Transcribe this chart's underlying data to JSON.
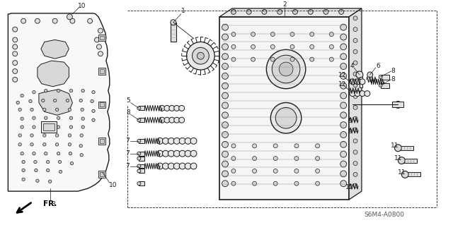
{
  "bg_color": "#ffffff",
  "line_color": "#1a1a1a",
  "part_code": "S6M4-A0800",
  "fig_width": 6.4,
  "fig_height": 3.19,
  "dpi": 100
}
